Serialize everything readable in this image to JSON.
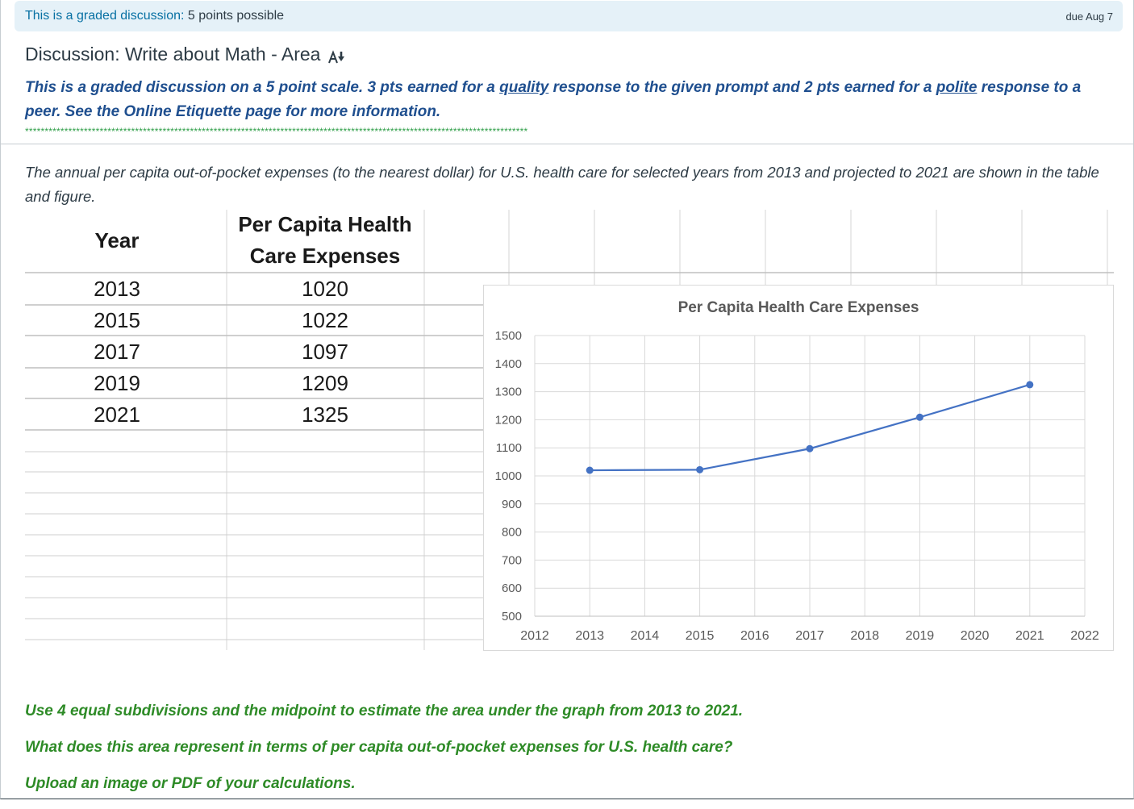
{
  "banner": {
    "label": "This is a graded discussion:",
    "points": "5 points possible",
    "due": "due Aug 7"
  },
  "discussion": {
    "title": "Discussion: Write about Math - Area",
    "title_icon": "format-text-icon"
  },
  "intro": {
    "part1": "This is a graded discussion on a 5 point scale. 3 pts earned for a ",
    "link1": "quality",
    "part2": " response to the given prompt and 2 pts earned for a ",
    "link2": "polite",
    "part3": " response to a peer. See the Online Etiquette page for more information."
  },
  "separator": "********************************************************************************************************************************",
  "description": "The annual per capita out-of-pocket expenses (to the nearest dollar) for U.S. health care for selected years from 2013 and projected to 2021 are shown in the table and figure.",
  "table": {
    "headers": [
      "Year",
      "Per Capita Health",
      "Care Expenses"
    ],
    "rows": [
      {
        "year": "2013",
        "value": "1020"
      },
      {
        "year": "2015",
        "value": "1022"
      },
      {
        "year": "2017",
        "value": "1097"
      },
      {
        "year": "2019",
        "value": "1209"
      },
      {
        "year": "2021",
        "value": "1325"
      }
    ]
  },
  "chart_data": {
    "type": "line",
    "title": "Per Capita Health Care Expenses",
    "x": [
      2013,
      2015,
      2017,
      2019,
      2021
    ],
    "series": [
      {
        "name": "Per Capita Health Care Expenses",
        "values": [
          1020,
          1022,
          1097,
          1209,
          1325
        ],
        "color": "#4472c4"
      }
    ],
    "xlim": [
      2012,
      2022
    ],
    "ylim": [
      500,
      1500
    ],
    "x_ticks": [
      "2012",
      "2013",
      "2014",
      "2015",
      "2016",
      "2017",
      "2018",
      "2019",
      "2020",
      "2021",
      "2022"
    ],
    "y_ticks": [
      "1500",
      "1400",
      "1300",
      "1200",
      "1100",
      "1000",
      "900",
      "800",
      "700",
      "600",
      "500"
    ],
    "grid": true,
    "legend": "none"
  },
  "questions": [
    "Use 4 equal subdivisions and the midpoint to estimate the area under the graph from 2013 to 2021.",
    "What does this area represent in terms of per capita out-of-pocket expenses for U.S. health care?",
    "Upload an image or PDF of your calculations."
  ],
  "colors": {
    "banner_bg": "#e5f1f8",
    "banner_label": "#0770a3",
    "intro_text": "#1f4f8f",
    "separator": "#2f9e48",
    "question_text": "#2e8b27",
    "series_line": "#4472c4"
  }
}
